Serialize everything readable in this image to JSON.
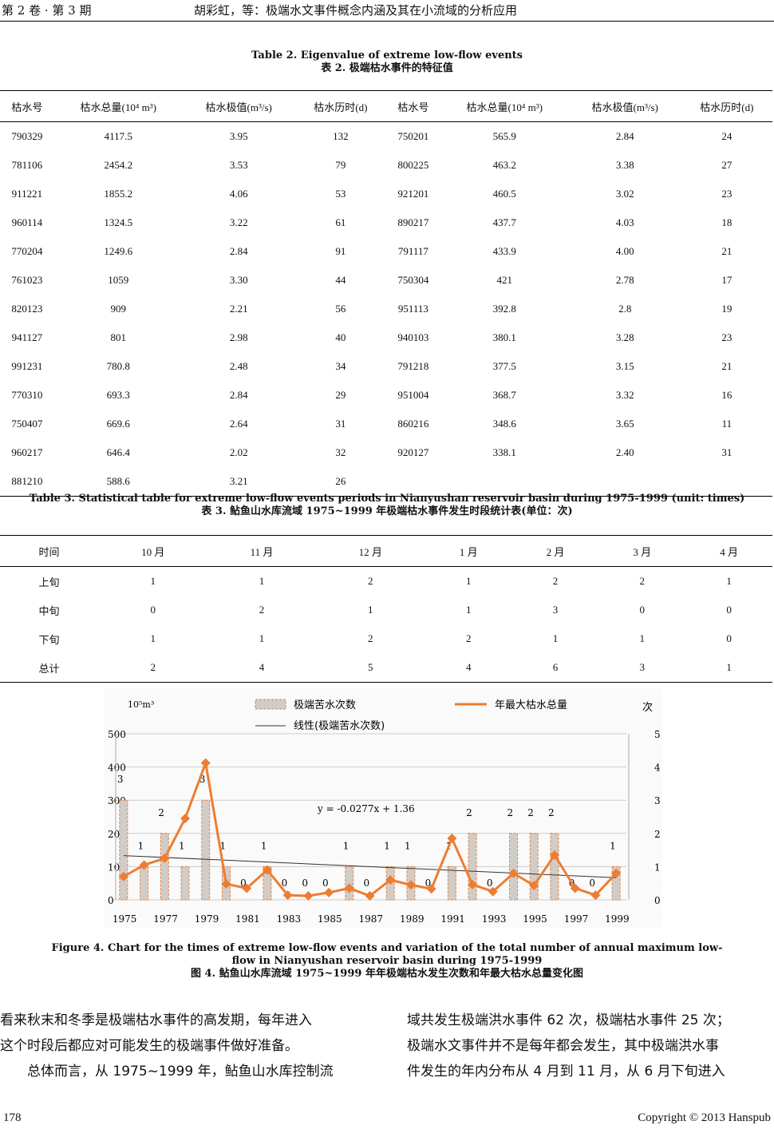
{
  "header": {
    "left": "第 2 卷 · 第 3 期",
    "center": "胡彩虹，等：极端水文事件概念内涵及其在小流域的分析应用"
  },
  "table2": {
    "caption_en": "Table 2. Eigenvalue of extreme low-flow events",
    "caption_zh": "表 2.  极端枯水事件的特征值",
    "headers": [
      "枯水号",
      "枯水总量(10⁴ m³)",
      "枯水极值(m³/s)",
      "枯水历时(d)",
      "枯水号",
      "枯水总量(10⁴ m³)",
      "枯水极值(m³/s)",
      "枯水历时(d)"
    ],
    "rows": [
      [
        "790329",
        "4117.5",
        "3.95",
        "132",
        "750201",
        "565.9",
        "2.84",
        "24"
      ],
      [
        "781106",
        "2454.2",
        "3.53",
        "79",
        "800225",
        "463.2",
        "3.38",
        "27"
      ],
      [
        "911221",
        "1855.2",
        "4.06",
        "53",
        "921201",
        "460.5",
        "3.02",
        "23"
      ],
      [
        "960114",
        "1324.5",
        "3.22",
        "61",
        "890217",
        "437.7",
        "4.03",
        "18"
      ],
      [
        "770204",
        "1249.6",
        "2.84",
        "91",
        "791117",
        "433.9",
        "4.00",
        "21"
      ],
      [
        "761023",
        "1059",
        "3.30",
        "44",
        "750304",
        "421",
        "2.78",
        "17"
      ],
      [
        "820123",
        "909",
        "2.21",
        "56",
        "951113",
        "392.8",
        "2.8",
        "19"
      ],
      [
        "941127",
        "801",
        "2.98",
        "40",
        "940103",
        "380.1",
        "3.28",
        "23"
      ],
      [
        "991231",
        "780.8",
        "2.48",
        "34",
        "791218",
        "377.5",
        "3.15",
        "21"
      ],
      [
        "770310",
        "693.3",
        "2.84",
        "29",
        "951004",
        "368.7",
        "3.32",
        "16"
      ],
      [
        "750407",
        "669.6",
        "2.64",
        "31",
        "860216",
        "348.6",
        "3.65",
        "11"
      ],
      [
        "960217",
        "646.4",
        "2.02",
        "32",
        "920127",
        "338.1",
        "2.40",
        "31"
      ],
      [
        "881210",
        "588.6",
        "3.21",
        "26",
        "",
        "",
        "",
        ""
      ]
    ]
  },
  "table3": {
    "caption_en": "Table 3. Statistical table for extreme low-flow events periods in Nianyushan reservoir basin during 1975-1999 (unit: times)",
    "caption_zh": "表 3.  鲇鱼山水库流域 1975~1999 年极端枯水事件发生时段统计表(单位：次)",
    "headers": [
      "时间",
      "10 月",
      "11 月",
      "12 月",
      "1 月",
      "2 月",
      "3 月",
      "4 月"
    ],
    "rows": [
      [
        "上旬",
        "1",
        "1",
        "2",
        "1",
        "2",
        "2",
        "1"
      ],
      [
        "中旬",
        "0",
        "2",
        "1",
        "1",
        "3",
        "0",
        "0"
      ],
      [
        "下旬",
        "1",
        "1",
        "2",
        "2",
        "1",
        "1",
        "0"
      ],
      [
        "总计",
        "2",
        "4",
        "5",
        "4",
        "6",
        "3",
        "1"
      ]
    ]
  },
  "chart_data": {
    "type": "bar+line",
    "x": [
      1975,
      1976,
      1977,
      1978,
      1979,
      1980,
      1981,
      1982,
      1983,
      1984,
      1985,
      1986,
      1987,
      1988,
      1989,
      1990,
      1991,
      1992,
      1993,
      1994,
      1995,
      1996,
      1997,
      1998,
      1999
    ],
    "series": [
      {
        "name": "极端苦水次数",
        "type": "bar",
        "axis": "right",
        "values": [
          3,
          1,
          2,
          1,
          3,
          1,
          0,
          1,
          0,
          0,
          0,
          1,
          0,
          1,
          1,
          0,
          1,
          2,
          0,
          2,
          2,
          2,
          0,
          0,
          1
        ]
      },
      {
        "name": "年最大枯水总量",
        "type": "line",
        "axis": "left",
        "values": [
          70,
          105,
          125,
          245,
          412,
          48,
          35,
          90,
          14,
          12,
          22,
          35,
          12,
          60,
          45,
          33,
          185,
          46,
          25,
          80,
          43,
          135,
          35,
          14,
          80
        ]
      },
      {
        "name": "线性(极端苦水次数)",
        "type": "trend",
        "slope": -0.0277,
        "intercept": 1.36
      }
    ],
    "ylabel_left": "10⁵m³",
    "ylabel_right": "次",
    "ylim_left": [
      0,
      500
    ],
    "ylim_right": [
      0,
      5
    ],
    "yticks_left": [
      "0",
      "100",
      "200",
      "300",
      "400",
      "500"
    ],
    "yticks_right": [
      "0",
      "1",
      "2",
      "3",
      "4",
      "5"
    ],
    "xticks": [
      "1975",
      "1977",
      "1979",
      "1981",
      "1983",
      "1985",
      "1987",
      "1989",
      "1991",
      "1993",
      "1995",
      "1997",
      "1999"
    ],
    "equation": "y = -0.0277x + 1.36",
    "legend": "top",
    "colors": {
      "line": "#ed7d31",
      "bar": "#d0ccc8"
    }
  },
  "figure": {
    "caption_en": "Figure 4. Chart for the times of extreme low-flow events and variation of the total number of annual maximum low-flow in Nianyushan reservoir basin during 1975-1999",
    "caption_zh": "图 4.  鲇鱼山水库流域 1975~1999 年年极端枯水发生次数和年最大枯水总量变化图"
  },
  "body": {
    "left": [
      "看来秋末和冬季是极端枯水事件的高发期，每年进入",
      "这个时段后都应对可能发生的极端事件做好准备。",
      "　　总体而言，从 1975~1999 年，鲇鱼山水库控制流"
    ],
    "right": [
      "域共发生极端洪水事件 62 次，极端枯水事件 25 次；",
      "极端水文事件并不是每年都会发生，其中极端洪水事",
      "件发生的年内分布从 4 月到 11 月，从 6 月下旬进入"
    ]
  },
  "footer": {
    "page": "178",
    "copyright": "Copyright © 2013 Hanspub"
  }
}
